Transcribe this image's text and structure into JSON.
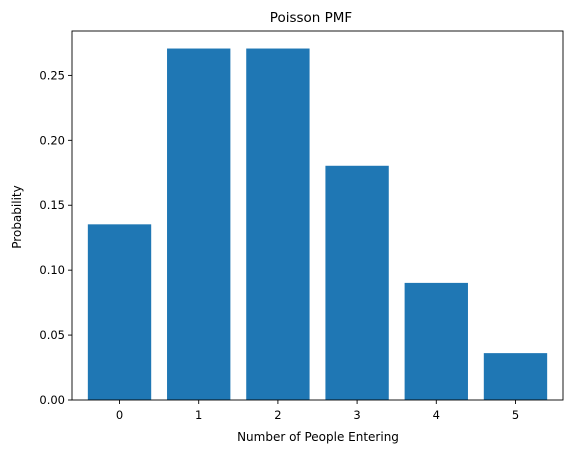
{
  "chart_data": {
    "type": "bar",
    "title": "Poisson PMF",
    "xlabel": "Number of People Entering",
    "ylabel": "Probability",
    "categories": [
      "0",
      "1",
      "2",
      "3",
      "4",
      "5"
    ],
    "values": [
      0.1353,
      0.2707,
      0.2707,
      0.1804,
      0.0902,
      0.0361
    ],
    "ylim": [
      0,
      0.2842
    ],
    "yticks": [
      0.0,
      0.05,
      0.1,
      0.15,
      0.2,
      0.25
    ],
    "ytick_labels": [
      "0.00",
      "0.05",
      "0.10",
      "0.15",
      "0.20",
      "0.25"
    ],
    "bar_color": "#1f77b4",
    "grid": false,
    "legend": "none"
  }
}
